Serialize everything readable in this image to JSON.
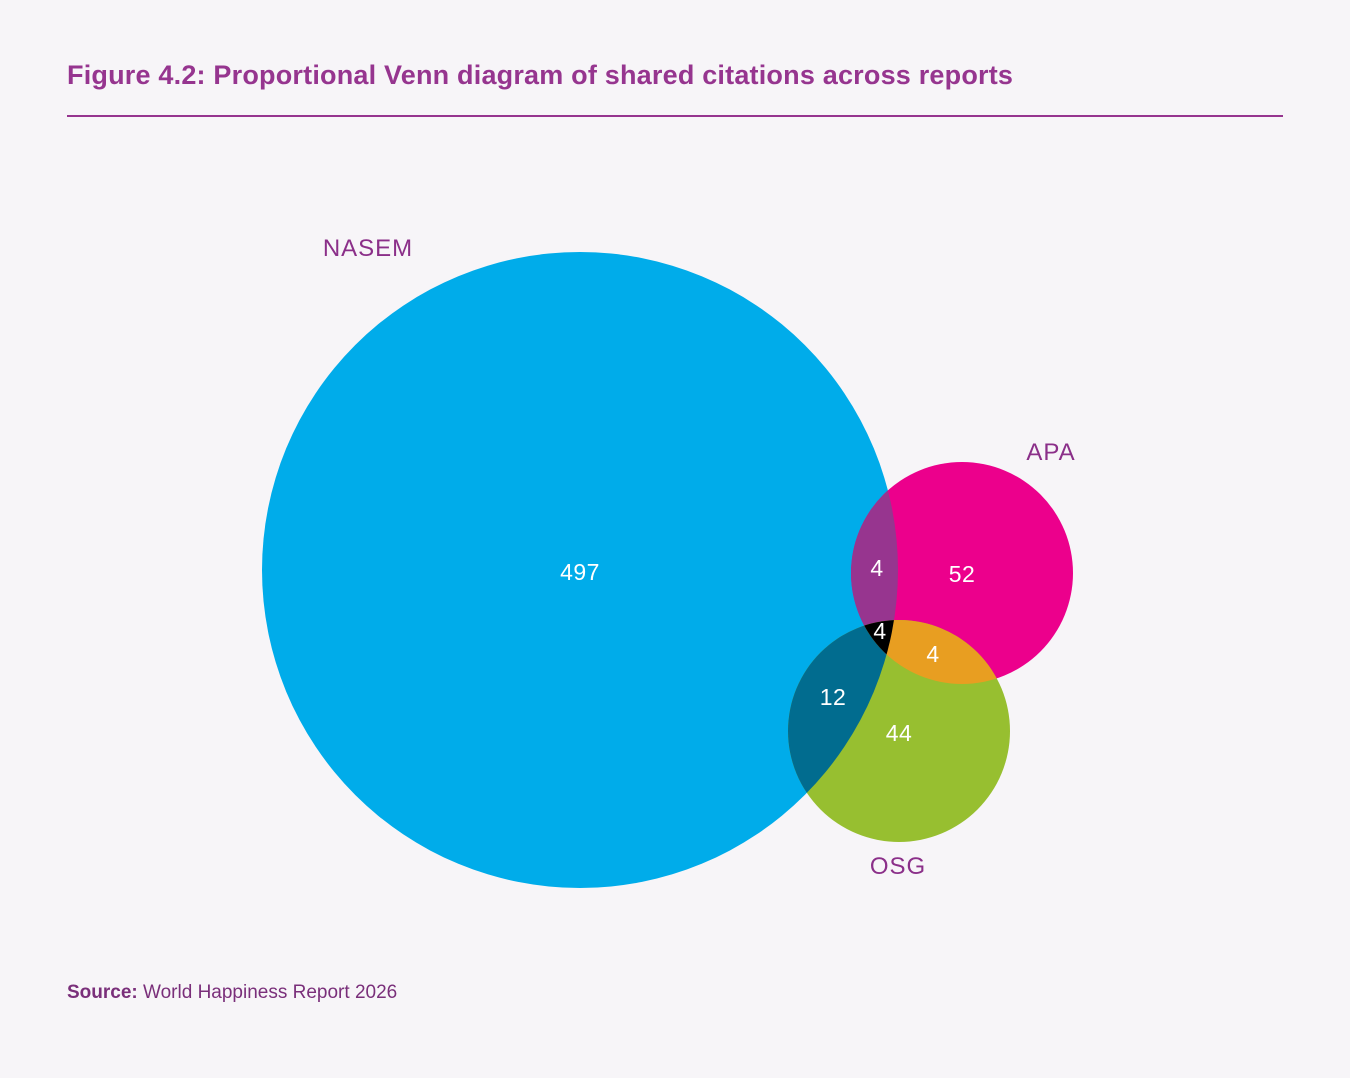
{
  "title": "Figure 4.2: Proportional Venn diagram of shared citations across reports",
  "source": {
    "label": "Source:",
    "text": " World Happiness Report 2026"
  },
  "sets": [
    {
      "name": "NASEM",
      "color": "#00acea"
    },
    {
      "name": "APA",
      "color": "#ec008c"
    },
    {
      "name": "OSG",
      "color": "#97bf30"
    }
  ],
  "regions": {
    "nasem_only": "497",
    "apa_only": "52",
    "osg_only": "44",
    "nasem_apa": "4",
    "nasem_osg": "12",
    "apa_osg": "4",
    "all_three": "4"
  },
  "region_colors": {
    "nasem_apa": "#97358f",
    "nasem_osg": "#016c8f",
    "apa_osg": "#e89e21",
    "all_three": "#000000"
  }
}
